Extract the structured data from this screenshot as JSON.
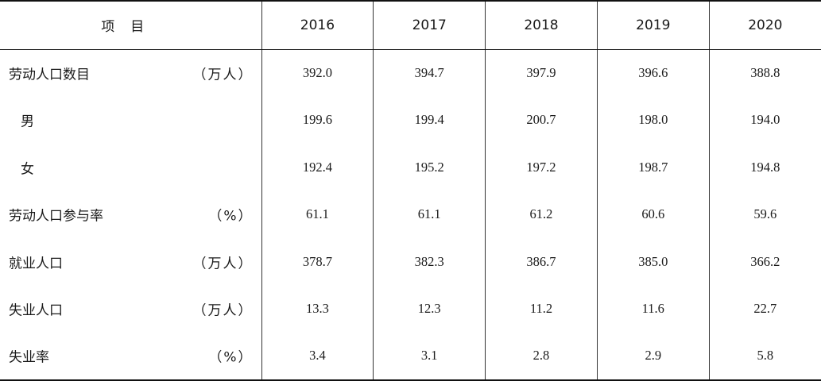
{
  "table": {
    "header": {
      "item": "项目",
      "years": [
        "2016",
        "2017",
        "2018",
        "2019",
        "2020"
      ]
    },
    "rows": [
      {
        "label": "劳动人口数目",
        "unit": "（万人）",
        "values": [
          "392.0",
          "394.7",
          "397.9",
          "396.6",
          "388.8"
        ]
      },
      {
        "label": "男",
        "unit": "",
        "values": [
          "199.6",
          "199.4",
          "200.7",
          "198.0",
          "194.0"
        ]
      },
      {
        "label": "女",
        "unit": "",
        "values": [
          "192.4",
          "195.2",
          "197.2",
          "198.7",
          "194.8"
        ]
      },
      {
        "label": "劳动人口参与率",
        "unit": "（%）",
        "values": [
          "61.1",
          "61.1",
          "61.2",
          "60.6",
          "59.6"
        ]
      },
      {
        "label": "就业人口",
        "unit": "（万人）",
        "values": [
          "378.7",
          "382.3",
          "386.7",
          "385.0",
          "366.2"
        ]
      },
      {
        "label": "失业人口",
        "unit": "（万人）",
        "values": [
          "13.3",
          "12.3",
          "11.2",
          "11.6",
          "22.7"
        ]
      },
      {
        "label": "失业率",
        "unit": "（%）",
        "values": [
          "3.4",
          "3.1",
          "2.8",
          "2.9",
          "5.8"
        ]
      }
    ]
  }
}
